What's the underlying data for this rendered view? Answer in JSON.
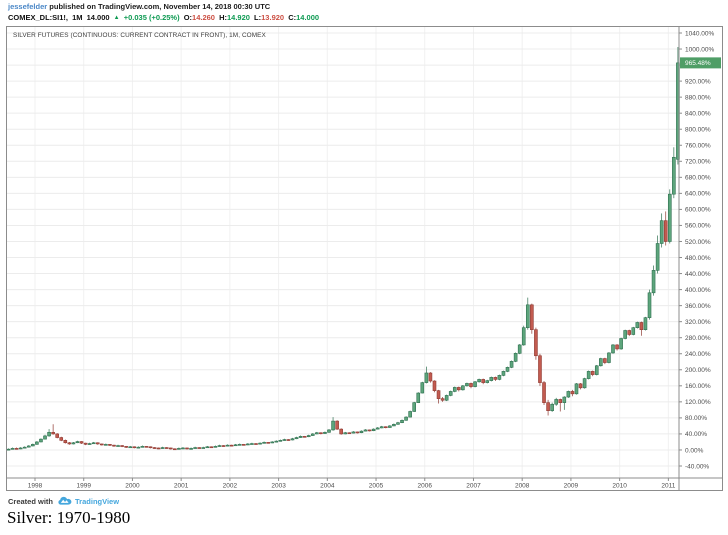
{
  "attribution": {
    "author": "jessefelder",
    "text": " published on TradingView.com, November 14, 2018 00:30 UTC"
  },
  "quote": {
    "symbol": "COMEX_DL:SI1!,",
    "interval": "1M",
    "last": "14.000",
    "arrow": "▲",
    "change": "+0.035 (+0.25%)",
    "o_label": "O:",
    "o_value": "14.260",
    "h_label": "H:",
    "h_value": "14.920",
    "l_label": "L:",
    "l_value": "13.920",
    "c_label": "C:",
    "c_value": "14.000"
  },
  "chart": {
    "title": "SILVER FUTURES (CONTINUOUS: CURRENT CONTRACT IN FRONT), 1M, COMEX",
    "price_badge": "965.48%"
  },
  "footer": {
    "created_with": "Created with",
    "brand": "TradingView"
  },
  "caption": "Silver: 1970-1980",
  "colors": {
    "up_fill": "#5da57c",
    "up_stroke": "#2f7050",
    "down_fill": "#c25b50",
    "down_stroke": "#8f3a32",
    "grid_h": "#ececec",
    "grid_v": "#f1f1f1",
    "axis_text": "#4c4c4c",
    "axis_line": "#8c8c8c",
    "badge_bg": "#4f9e66",
    "badge_text": "#ffffff"
  },
  "chart_data": {
    "type": "candlestick",
    "title": "SILVER FUTURES (CONTINUOUS: CURRENT CONTRACT IN FRONT), 1M, COMEX",
    "timeframe": "1M",
    "exchange": "COMEX",
    "scale": "percent-change",
    "last_price_pct": 965.48,
    "y_ticks": [
      1040,
      1000,
      960,
      920,
      880,
      840,
      800,
      760,
      720,
      680,
      640,
      600,
      560,
      520,
      480,
      440,
      400,
      360,
      320,
      280,
      240,
      200,
      160,
      120,
      80,
      40,
      0,
      -40
    ],
    "y_tick_suffix": "%",
    "ylim": [
      -70,
      1075
    ],
    "x_ticks": [
      1998,
      1999,
      2000,
      2001,
      2002,
      2003,
      2004,
      2005,
      2006,
      2007,
      2008,
      2009,
      2010,
      2011
    ],
    "grid": true,
    "legend": null,
    "candles_format": [
      "open",
      "high",
      "low",
      "close"
    ],
    "candles": [
      [
        0,
        4,
        -1,
        2
      ],
      [
        2,
        6,
        1,
        4
      ],
      [
        4,
        6,
        1,
        3
      ],
      [
        3,
        7,
        2,
        5
      ],
      [
        5,
        9,
        4,
        7
      ],
      [
        7,
        12,
        6,
        10
      ],
      [
        10,
        16,
        9,
        14
      ],
      [
        14,
        22,
        13,
        20
      ],
      [
        20,
        29,
        19,
        27
      ],
      [
        27,
        38,
        26,
        35
      ],
      [
        35,
        52,
        33,
        44
      ],
      [
        44,
        64,
        38,
        40
      ],
      [
        40,
        42,
        29,
        31
      ],
      [
        31,
        33,
        22,
        24
      ],
      [
        24,
        26,
        16,
        18
      ],
      [
        18,
        20,
        13,
        15
      ],
      [
        15,
        20,
        14,
        18
      ],
      [
        18,
        23,
        17,
        21
      ],
      [
        21,
        22,
        15,
        17
      ],
      [
        17,
        18,
        12,
        14
      ],
      [
        14,
        18,
        13,
        16
      ],
      [
        16,
        20,
        15,
        18
      ],
      [
        18,
        19,
        13,
        15
      ],
      [
        15,
        16,
        11,
        13
      ],
      [
        13,
        16,
        12,
        14
      ],
      [
        14,
        15,
        10,
        12
      ],
      [
        12,
        13,
        8,
        10
      ],
      [
        10,
        13,
        9,
        11
      ],
      [
        11,
        12,
        7,
        9
      ],
      [
        9,
        10,
        5,
        7
      ],
      [
        7,
        10,
        6,
        8
      ],
      [
        8,
        9,
        4,
        6
      ],
      [
        6,
        9,
        5,
        7
      ],
      [
        7,
        11,
        6,
        9
      ],
      [
        9,
        10,
        6,
        8
      ],
      [
        8,
        9,
        4,
        6
      ],
      [
        6,
        7,
        3,
        5
      ],
      [
        5,
        6,
        2,
        4
      ],
      [
        4,
        8,
        3,
        6
      ],
      [
        6,
        7,
        3,
        5
      ],
      [
        5,
        6,
        1,
        3
      ],
      [
        3,
        4,
        0,
        2
      ],
      [
        2,
        6,
        1,
        4
      ],
      [
        4,
        7,
        3,
        5
      ],
      [
        5,
        6,
        1,
        3
      ],
      [
        3,
        6,
        2,
        4
      ],
      [
        4,
        8,
        3,
        6
      ],
      [
        6,
        7,
        3,
        5
      ],
      [
        5,
        8,
        4,
        6
      ],
      [
        6,
        10,
        5,
        8
      ],
      [
        8,
        9,
        5,
        7
      ],
      [
        7,
        11,
        6,
        9
      ],
      [
        9,
        13,
        8,
        11
      ],
      [
        11,
        12,
        8,
        10
      ],
      [
        10,
        14,
        9,
        12
      ],
      [
        12,
        13,
        9,
        11
      ],
      [
        11,
        15,
        10,
        13
      ],
      [
        13,
        16,
        12,
        14
      ],
      [
        14,
        15,
        11,
        13
      ],
      [
        13,
        17,
        12,
        15
      ],
      [
        15,
        18,
        14,
        16
      ],
      [
        16,
        17,
        13,
        15
      ],
      [
        15,
        19,
        14,
        17
      ],
      [
        17,
        21,
        16,
        19
      ],
      [
        19,
        20,
        16,
        18
      ],
      [
        18,
        22,
        17,
        20
      ],
      [
        20,
        24,
        19,
        22
      ],
      [
        22,
        26,
        21,
        24
      ],
      [
        24,
        28,
        23,
        26
      ],
      [
        26,
        27,
        23,
        25
      ],
      [
        25,
        30,
        24,
        28
      ],
      [
        28,
        33,
        27,
        31
      ],
      [
        31,
        36,
        30,
        34
      ],
      [
        34,
        35,
        31,
        33
      ],
      [
        33,
        38,
        32,
        36
      ],
      [
        36,
        42,
        35,
        40
      ],
      [
        40,
        45,
        39,
        43
      ],
      [
        43,
        44,
        39,
        41
      ],
      [
        41,
        46,
        40,
        44
      ],
      [
        44,
        52,
        43,
        50
      ],
      [
        50,
        82,
        48,
        72
      ],
      [
        72,
        74,
        50,
        52
      ],
      [
        52,
        54,
        38,
        40
      ],
      [
        40,
        45,
        39,
        43
      ],
      [
        43,
        44,
        40,
        42
      ],
      [
        42,
        47,
        41,
        45
      ],
      [
        45,
        46,
        41,
        43
      ],
      [
        43,
        49,
        42,
        47
      ],
      [
        47,
        52,
        46,
        50
      ],
      [
        50,
        51,
        46,
        48
      ],
      [
        48,
        54,
        47,
        52
      ],
      [
        52,
        57,
        51,
        55
      ],
      [
        55,
        60,
        54,
        58
      ],
      [
        58,
        59,
        54,
        56
      ],
      [
        56,
        62,
        55,
        60
      ],
      [
        60,
        66,
        59,
        64
      ],
      [
        64,
        70,
        63,
        68
      ],
      [
        68,
        76,
        67,
        74
      ],
      [
        74,
        84,
        73,
        82
      ],
      [
        82,
        98,
        81,
        96
      ],
      [
        96,
        120,
        95,
        118
      ],
      [
        118,
        144,
        117,
        142
      ],
      [
        142,
        170,
        141,
        168
      ],
      [
        168,
        208,
        166,
        192
      ],
      [
        192,
        194,
        168,
        172
      ],
      [
        172,
        174,
        144,
        148
      ],
      [
        148,
        150,
        116,
        128
      ],
      [
        128,
        132,
        120,
        124
      ],
      [
        124,
        138,
        122,
        136
      ],
      [
        136,
        148,
        134,
        146
      ],
      [
        146,
        158,
        144,
        156
      ],
      [
        156,
        158,
        146,
        150
      ],
      [
        150,
        162,
        148,
        160
      ],
      [
        160,
        168,
        158,
        166
      ],
      [
        166,
        168,
        154,
        158
      ],
      [
        158,
        172,
        156,
        170
      ],
      [
        170,
        178,
        168,
        176
      ],
      [
        176,
        178,
        164,
        168
      ],
      [
        168,
        175,
        166,
        173
      ],
      [
        173,
        183,
        171,
        181
      ],
      [
        181,
        183,
        172,
        176
      ],
      [
        176,
        188,
        174,
        186
      ],
      [
        186,
        198,
        184,
        196
      ],
      [
        196,
        208,
        194,
        206
      ],
      [
        206,
        223,
        204,
        221
      ],
      [
        221,
        243,
        219,
        241
      ],
      [
        241,
        264,
        239,
        262
      ],
      [
        262,
        310,
        260,
        305
      ],
      [
        305,
        380,
        300,
        362
      ],
      [
        362,
        365,
        290,
        300
      ],
      [
        300,
        305,
        225,
        235
      ],
      [
        235,
        240,
        160,
        168
      ],
      [
        168,
        172,
        112,
        118
      ],
      [
        118,
        125,
        86,
        98
      ],
      [
        98,
        118,
        95,
        114
      ],
      [
        114,
        130,
        110,
        126
      ],
      [
        126,
        128,
        96,
        118
      ],
      [
        118,
        134,
        100,
        132
      ],
      [
        132,
        148,
        130,
        146
      ],
      [
        146,
        150,
        134,
        140
      ],
      [
        140,
        167,
        138,
        165
      ],
      [
        165,
        167,
        151,
        155
      ],
      [
        155,
        180,
        153,
        178
      ],
      [
        178,
        198,
        176,
        196
      ],
      [
        196,
        198,
        184,
        188
      ],
      [
        188,
        212,
        186,
        210
      ],
      [
        210,
        230,
        208,
        228
      ],
      [
        228,
        230,
        214,
        218
      ],
      [
        218,
        244,
        216,
        242
      ],
      [
        242,
        264,
        240,
        262
      ],
      [
        262,
        264,
        248,
        252
      ],
      [
        252,
        280,
        250,
        278
      ],
      [
        278,
        300,
        276,
        298
      ],
      [
        298,
        300,
        284,
        288
      ],
      [
        288,
        307,
        286,
        305
      ],
      [
        305,
        320,
        303,
        318
      ],
      [
        318,
        320,
        285,
        300
      ],
      [
        300,
        332,
        298,
        330
      ],
      [
        330,
        400,
        325,
        392
      ],
      [
        392,
        460,
        385,
        448
      ],
      [
        448,
        535,
        440,
        515
      ],
      [
        515,
        590,
        505,
        572
      ],
      [
        572,
        595,
        510,
        520
      ],
      [
        520,
        650,
        515,
        638
      ],
      [
        638,
        755,
        628,
        730
      ],
      [
        725,
        1005,
        712,
        965.48
      ]
    ]
  }
}
